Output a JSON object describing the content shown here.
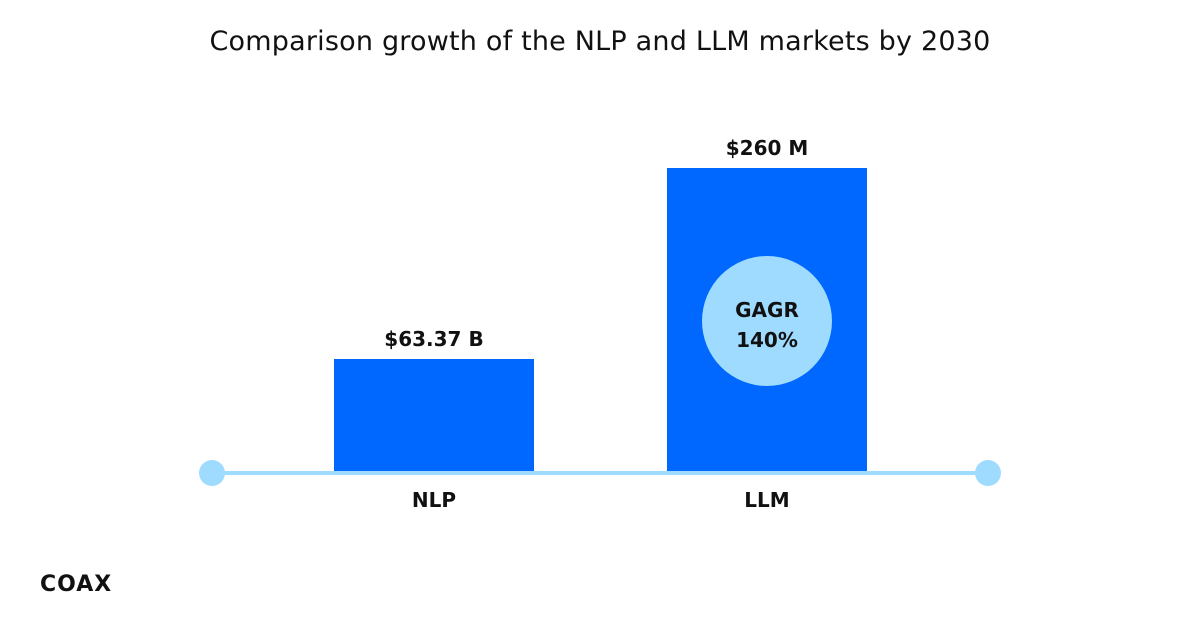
{
  "chart_data": {
    "type": "bar",
    "title": "Comparison growth of the NLP and LLM markets by 2030",
    "categories": [
      "NLP",
      "LLM"
    ],
    "value_labels": [
      "$63.37 B",
      "$260 M"
    ],
    "values": [
      63.37,
      260
    ],
    "units": [
      "B",
      "M"
    ],
    "annotation": {
      "category": "LLM",
      "line1": "GAGR",
      "line2": "140%"
    },
    "xlabel": "",
    "ylabel": "",
    "grid": false
  },
  "brand": {
    "logo_text": "COAX"
  },
  "colors": {
    "bar": "#0068FF",
    "axis": "#9FDBFF",
    "badge": "#9FDBFF",
    "text": "#111111",
    "background": "#FFFFFF"
  }
}
